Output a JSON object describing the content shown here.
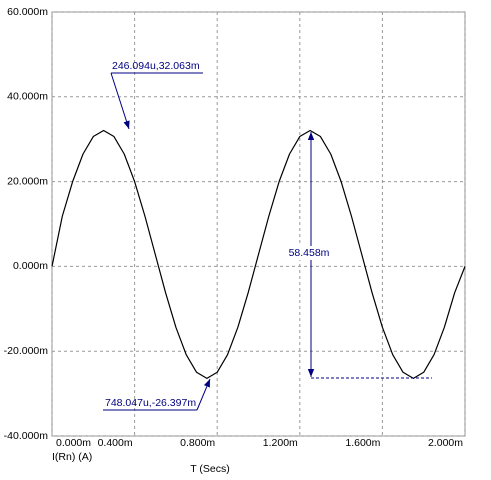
{
  "chart_data": {
    "type": "line",
    "x_label": "T (Secs)",
    "x": [
      0,
      0.05,
      0.1,
      0.15,
      0.2,
      0.25,
      0.3,
      0.35,
      0.4,
      0.45,
      0.5,
      0.55,
      0.6,
      0.65,
      0.7,
      0.75,
      0.8,
      0.85,
      0.9,
      0.95,
      1.0,
      1.05,
      1.1,
      1.15,
      1.2,
      1.25,
      1.3,
      1.35,
      1.4,
      1.45,
      1.5,
      1.55,
      1.6,
      1.65,
      1.7,
      1.75,
      1.8,
      1.85,
      1.9,
      1.95,
      2.0
    ],
    "series": [
      {
        "name": "I(Rn) (A)",
        "color": "#000000",
        "values": [
          0,
          11.86,
          20.02,
          26.48,
          30.63,
          32.06,
          30.63,
          26.48,
          20.02,
          11.86,
          2.83,
          -6.2,
          -14.36,
          -20.82,
          -24.97,
          -26.4,
          -24.97,
          -20.82,
          -14.36,
          -6.2,
          2.83,
          11.86,
          20.02,
          26.48,
          30.63,
          32.06,
          30.63,
          26.48,
          20.02,
          11.86,
          2.83,
          -6.2,
          -14.36,
          -20.82,
          -24.97,
          -26.4,
          -24.97,
          -20.82,
          -14.36,
          -6.2,
          0
        ]
      }
    ],
    "xlim": [
      0,
      2.0
    ],
    "xticks": [
      {
        "value": 0,
        "label": "0.000m"
      },
      {
        "value": 0.4,
        "label": "0.400m"
      },
      {
        "value": 0.8,
        "label": "0.800m"
      },
      {
        "value": 1.2,
        "label": "1.200m"
      },
      {
        "value": 1.6,
        "label": "1.600m"
      },
      {
        "value": 2.0,
        "label": "2.000m"
      }
    ],
    "ylim": [
      -40,
      60
    ],
    "yticks": [
      {
        "value": -40,
        "label": "-40.000m"
      },
      {
        "value": -20,
        "label": "-20.000m"
      },
      {
        "value": 0,
        "label": "0.000m"
      },
      {
        "value": 20,
        "label": "20.000m"
      },
      {
        "value": 40,
        "label": "40.000m"
      },
      {
        "value": 60,
        "label": "60.000m"
      }
    ],
    "grid": true,
    "annotations": [
      "246.094u,32.063m",
      "748.047u,-26.397m",
      "58.458m"
    ]
  }
}
